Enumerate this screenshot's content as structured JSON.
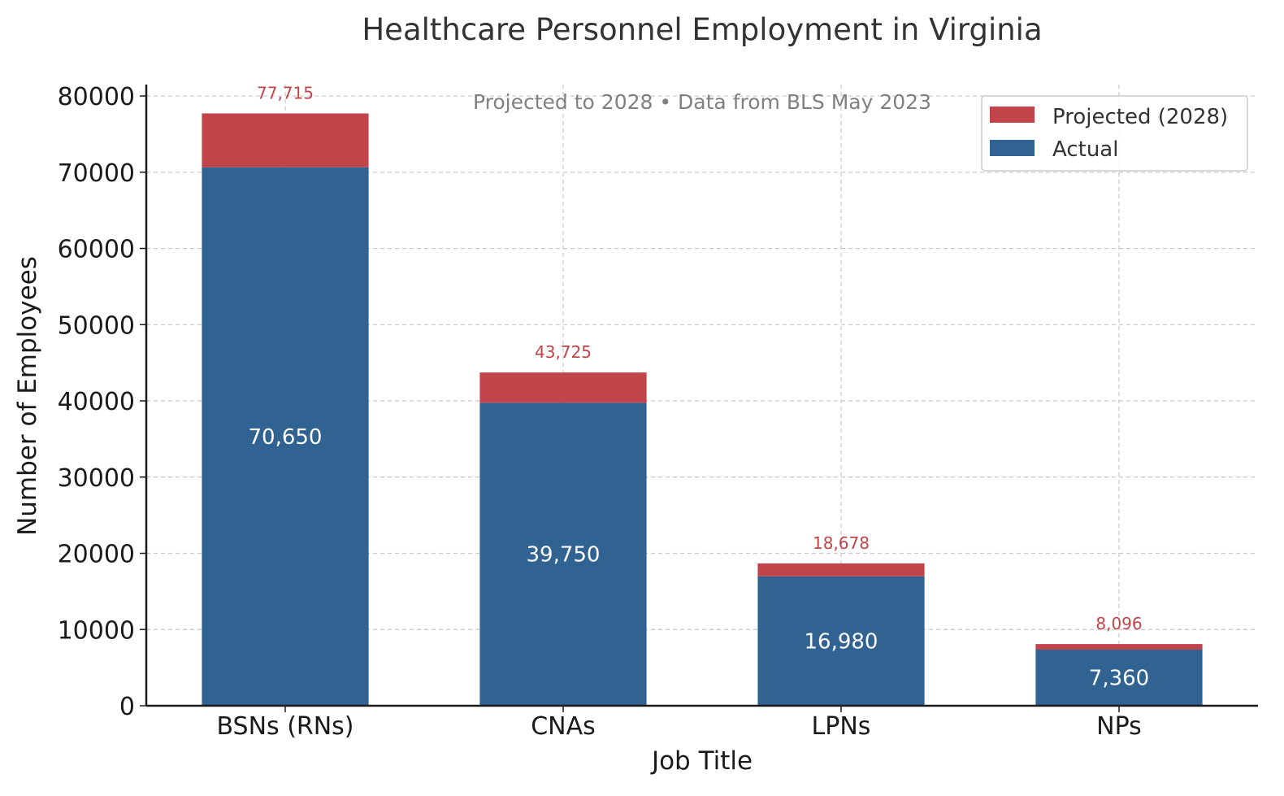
{
  "chart_data": {
    "type": "bar",
    "stacked": true,
    "title": "Healthcare Personnel Employment in Virginia",
    "subtitle": "Projected to 2028 • Data from BLS May 2023",
    "xlabel": "Job Title",
    "ylabel": "Number of Employees",
    "categories": [
      "BSNs (RNs)",
      "CNAs",
      "LPNs",
      "NPs"
    ],
    "series": [
      {
        "name": "Actual",
        "color": "#306392",
        "values": [
          70650,
          39750,
          16980,
          7360
        ],
        "labels": [
          "70,650",
          "39,750",
          "16,980",
          "7,360"
        ]
      },
      {
        "name": "Projected (2028)",
        "color": "#c0444a",
        "totals": [
          77715,
          43725,
          18678,
          8096
        ],
        "labels": [
          "77,715",
          "43,725",
          "18,678",
          "8,096"
        ]
      }
    ],
    "ylim": [
      0,
      81500
    ],
    "yticks": [
      0,
      10000,
      20000,
      30000,
      40000,
      50000,
      60000,
      70000,
      80000
    ],
    "ytick_labels": [
      "0",
      "10000",
      "20000",
      "30000",
      "40000",
      "50000",
      "60000",
      "70000",
      "80000"
    ],
    "grid": true,
    "legend_position": "top-right",
    "legend_order": [
      "Projected (2028)",
      "Actual"
    ]
  }
}
